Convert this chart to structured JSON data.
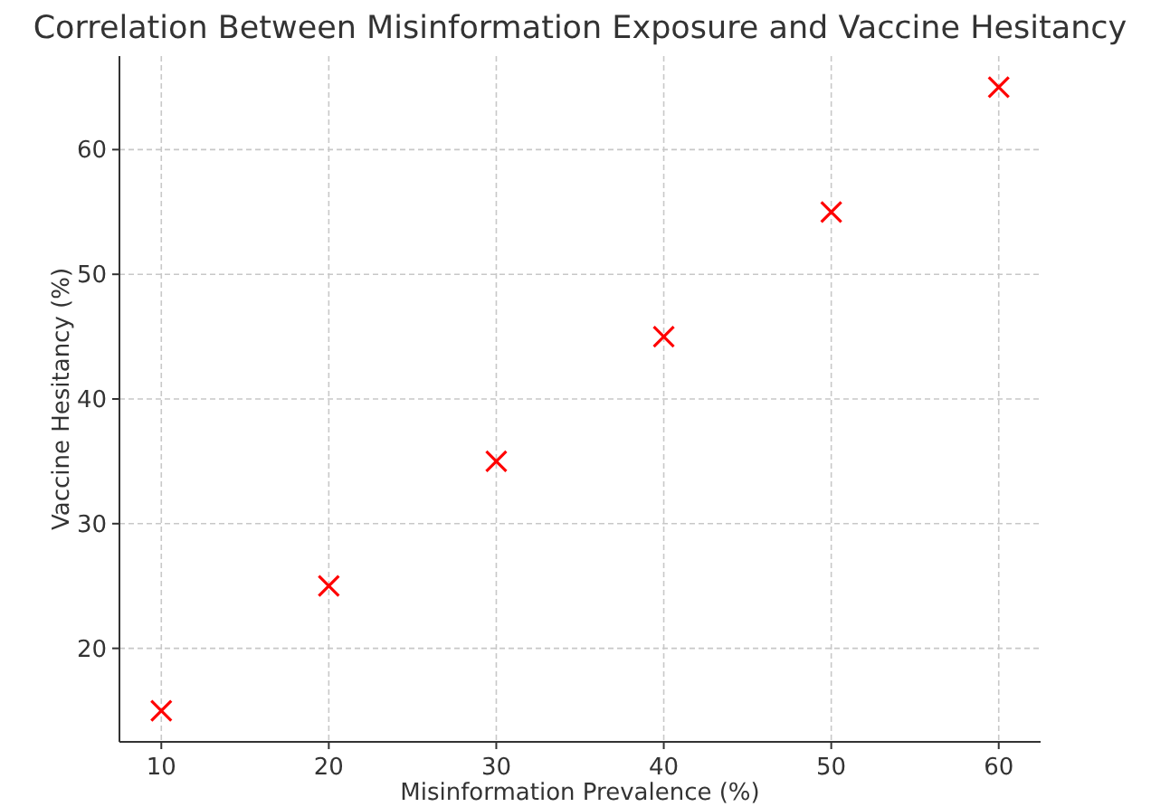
{
  "chart_data": {
    "type": "scatter",
    "title": "Correlation Between Misinformation Exposure and Vaccine Hesitancy",
    "xlabel": "Misinformation Prevalence (%)",
    "ylabel": "Vaccine Hesitancy (%)",
    "x": [
      10,
      20,
      30,
      40,
      50,
      60
    ],
    "series": [
      {
        "color": "#ff0000",
        "values": [
          15,
          25,
          35,
          45,
          55,
          65
        ]
      }
    ],
    "xlim": [
      7.5,
      62.5
    ],
    "xticks": [
      10,
      20,
      30,
      40,
      50,
      60
    ],
    "ylim": [
      12.5,
      67.5
    ],
    "yticks": [
      20,
      30,
      40,
      50,
      60
    ],
    "grid": true,
    "marker": "cross"
  }
}
